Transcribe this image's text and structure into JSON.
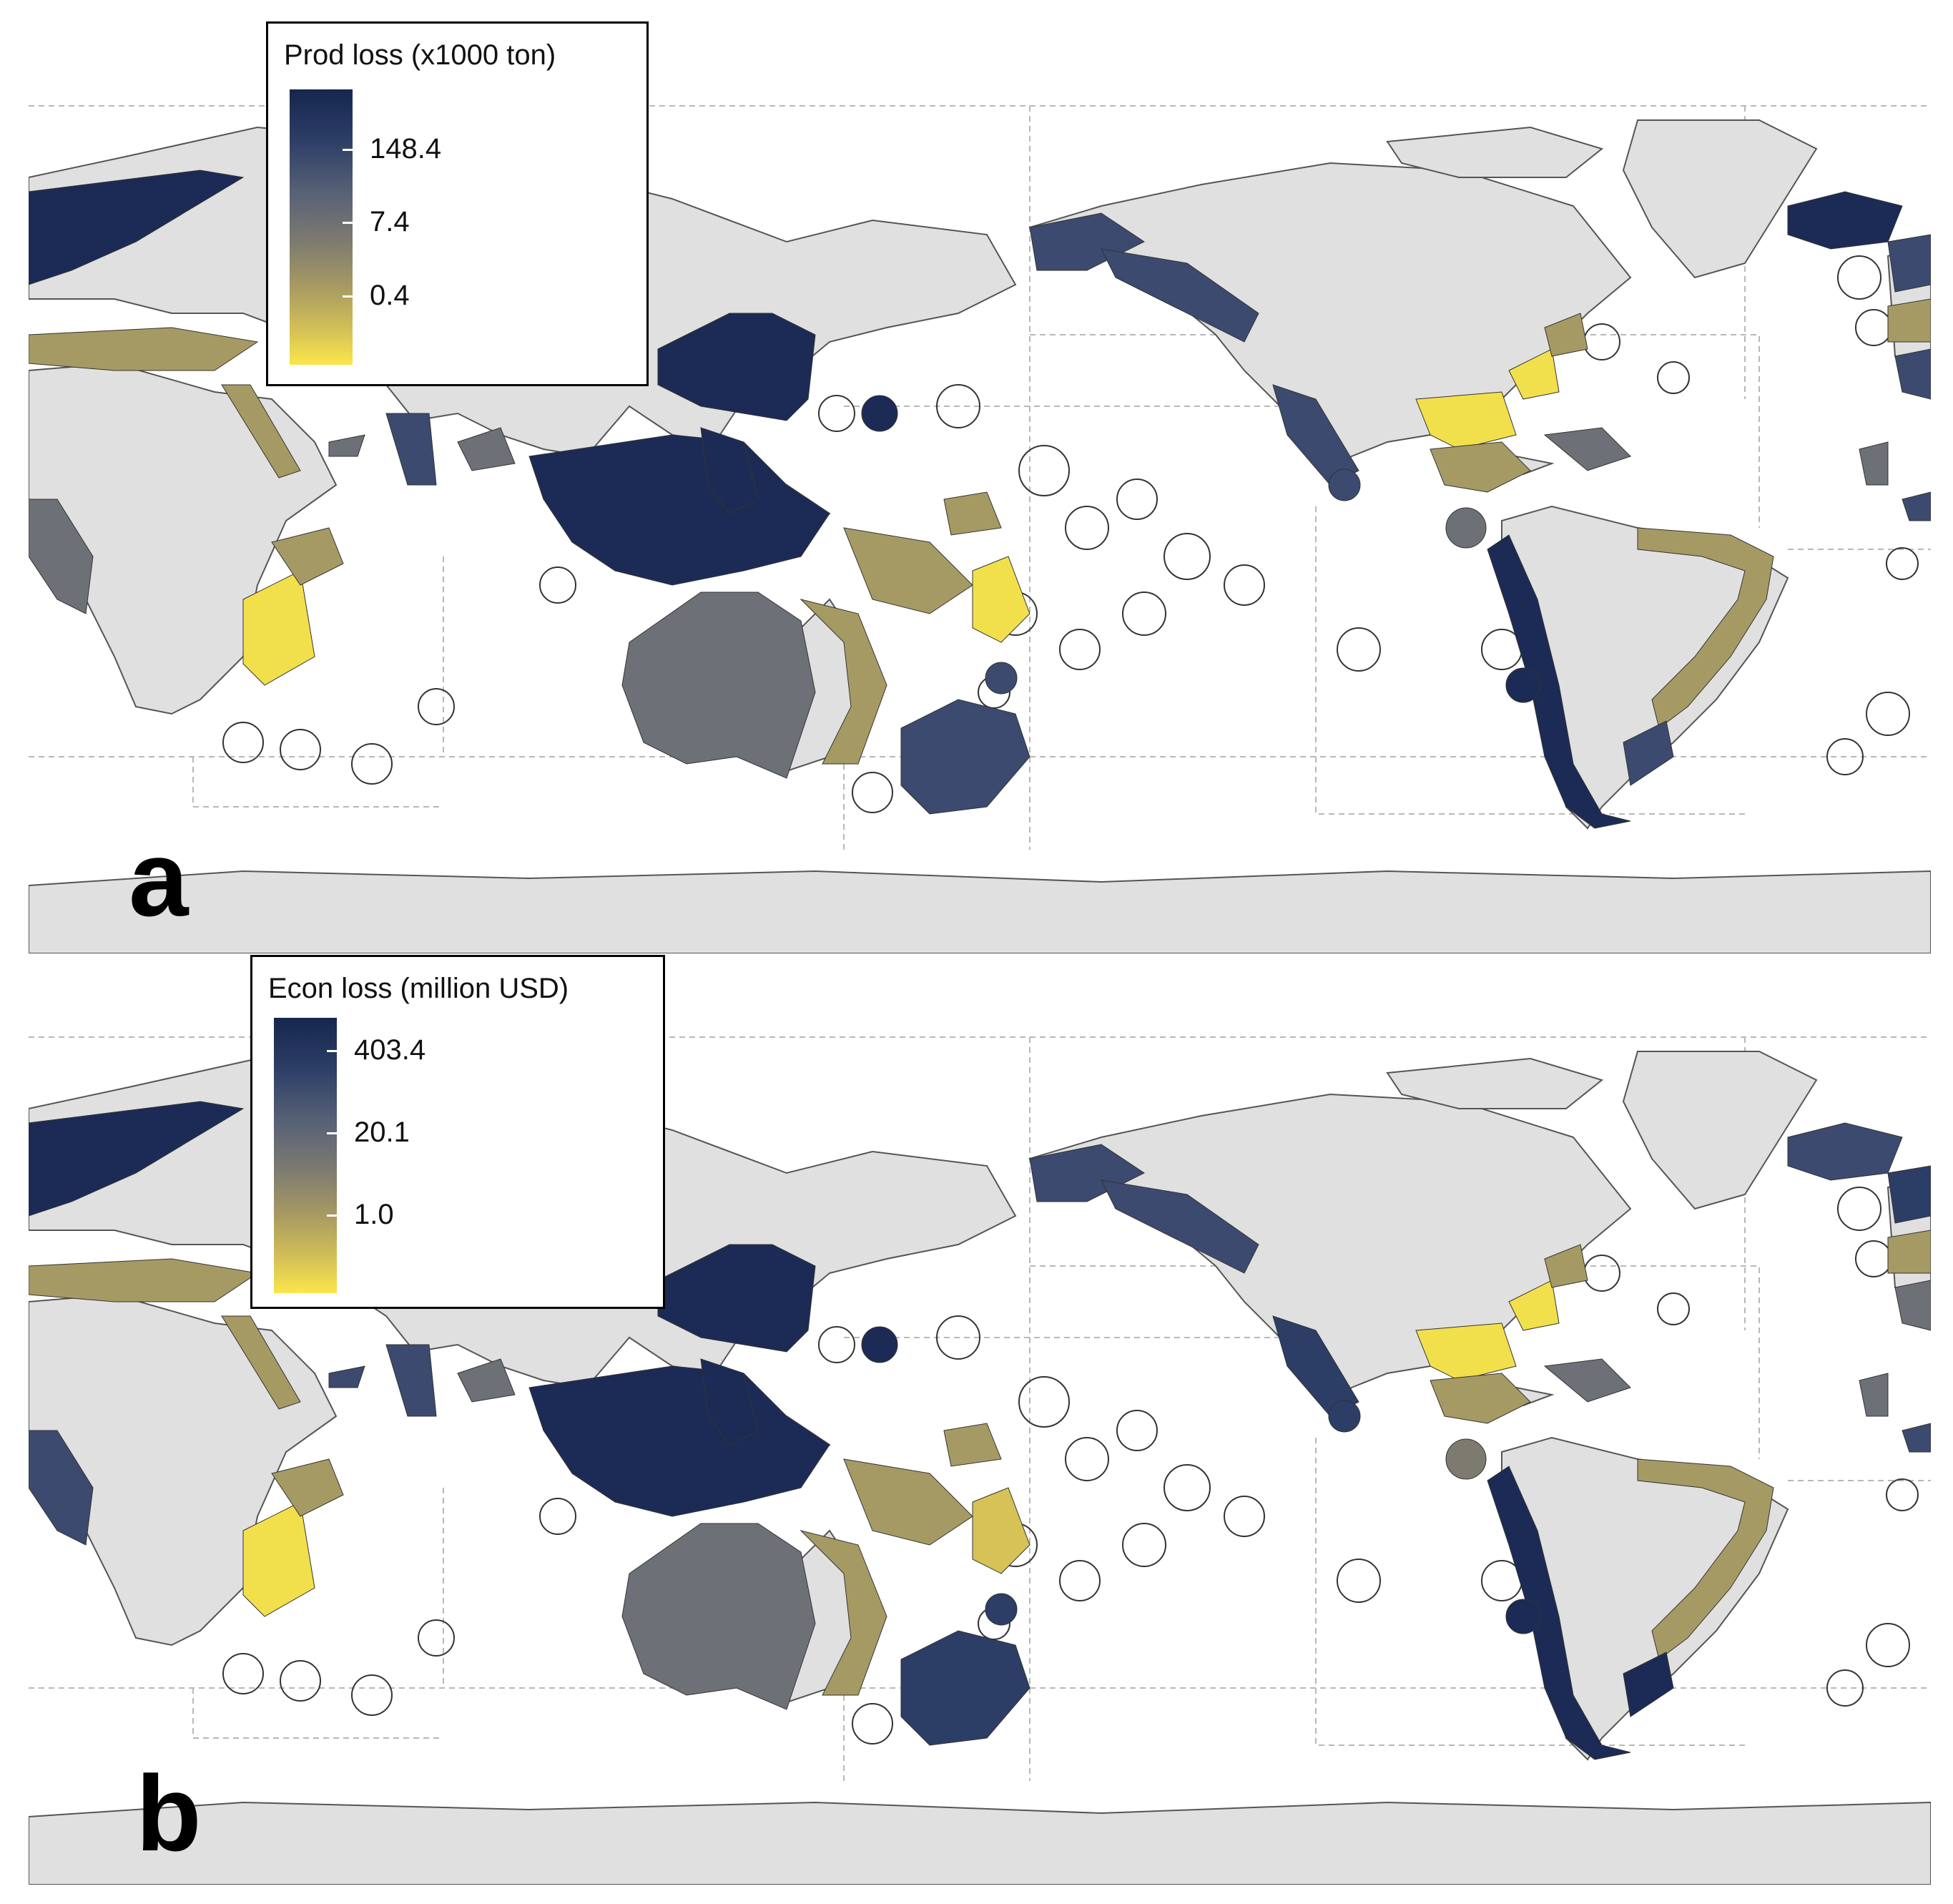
{
  "panels": [
    {
      "letter": "a",
      "legend": {
        "title": "Prod loss (x1000 ton)",
        "ticks": [
          "148.4",
          "7.4",
          "0.4"
        ],
        "gradient": [
          "#15264f",
          "#586277",
          "#a89b62",
          "#fbe64a"
        ]
      }
    },
    {
      "letter": "b",
      "legend": {
        "title": "Econ loss (million USD)",
        "ticks": [
          "403.4",
          "20.1",
          "1.0"
        ],
        "gradient": [
          "#15264f",
          "#586277",
          "#a89b62",
          "#fbe64a"
        ]
      }
    }
  ],
  "colors": {
    "land": "#e0e0e0",
    "eez_outline": "#555555",
    "ocean": "#ffffff",
    "high": "#1b2b55",
    "mid_high": "#3c4a6f",
    "mid": "#6e7078",
    "low": "#a69a64",
    "lowest": "#f2df4c"
  }
}
